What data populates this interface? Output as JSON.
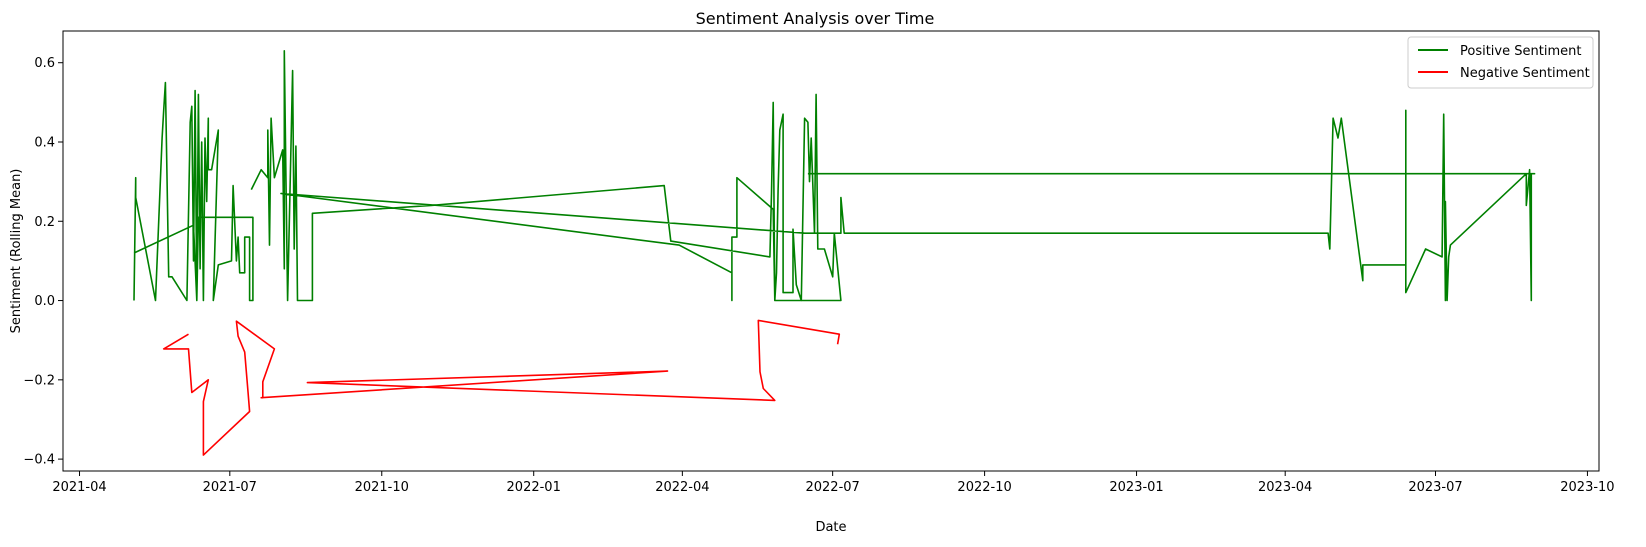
{
  "chart_data": {
    "type": "line",
    "title": "Sentiment Analysis over Time",
    "xlabel": "Date",
    "ylabel": "Sentiment (Rolling Mean)",
    "xlim": [
      "2021-03-22",
      "2023-10-08"
    ],
    "ylim": [
      -0.43,
      0.68
    ],
    "x_ticks": [
      "2021-04",
      "2021-07",
      "2021-10",
      "2022-01",
      "2022-04",
      "2022-07",
      "2022-10",
      "2023-01",
      "2023-04",
      "2023-07",
      "2023-10"
    ],
    "y_ticks": [
      -0.4,
      -0.2,
      0.0,
      0.2,
      0.4,
      0.6
    ],
    "y_tick_labels": [
      "−0.4",
      "−0.2",
      "0.0",
      "0.2",
      "0.4",
      "0.6"
    ],
    "grid": false,
    "legend_position": "top-right",
    "series": [
      {
        "name": "Positive Sentiment",
        "color": "#008000",
        "points": [
          [
            "2021-05-04",
            0.12
          ],
          [
            "2021-06-09",
            0.19
          ],
          [
            "2021-06-11",
            0.0
          ],
          [
            "2021-06-12",
            0.21
          ],
          [
            "2021-07-15",
            0.21
          ],
          [
            "2021-07-15",
            0.0
          ],
          [
            "2021-07-13",
            0.0
          ],
          [
            "2021-07-13",
            0.16
          ],
          [
            "2021-07-10",
            0.16
          ],
          [
            "2021-07-10",
            0.07
          ],
          [
            "2021-07-07",
            0.07
          ],
          [
            "2021-07-06",
            0.16
          ],
          [
            "2021-07-05",
            0.1
          ],
          [
            "2021-07-03",
            0.29
          ],
          [
            "2021-07-02",
            0.1
          ],
          [
            "2021-06-24",
            0.09
          ],
          [
            "2021-06-21",
            0.0
          ],
          [
            "2021-06-24",
            0.43
          ],
          [
            "2021-06-20",
            0.33
          ],
          [
            "2021-06-18",
            0.33
          ],
          [
            "2021-06-18",
            0.46
          ],
          [
            "2021-06-17",
            0.25
          ],
          [
            "2021-06-16",
            0.41
          ],
          [
            "2021-06-15",
            0.0
          ],
          [
            "2021-06-14",
            0.4
          ],
          [
            "2021-06-13",
            0.08
          ],
          [
            "2021-06-12",
            0.52
          ],
          [
            "2021-06-11",
            0.0
          ],
          [
            "2021-06-10",
            0.53
          ],
          [
            "2021-06-09",
            0.1
          ],
          [
            "2021-06-08",
            0.49
          ],
          [
            "2021-06-07",
            0.45
          ],
          [
            "2021-06-05",
            0.0
          ],
          [
            "2021-05-27",
            0.06
          ],
          [
            "2021-05-25",
            0.06
          ],
          [
            "2021-05-23",
            0.55
          ],
          [
            "2021-05-22",
            0.48
          ],
          [
            "2021-05-21",
            0.41
          ],
          [
            "2021-05-17",
            0.0
          ],
          [
            "2021-05-05",
            0.26
          ],
          [
            "2021-05-05",
            0.31
          ],
          [
            "2021-05-04",
            0.0
          ]
        ],
        "points_2": [
          [
            "2021-07-14",
            0.28
          ],
          [
            "2021-07-20",
            0.33
          ],
          [
            "2021-07-24",
            0.31
          ],
          [
            "2021-07-24",
            0.43
          ],
          [
            "2021-07-25",
            0.14
          ],
          [
            "2021-07-26",
            0.46
          ],
          [
            "2021-07-28",
            0.31
          ],
          [
            "2021-08-02",
            0.38
          ],
          [
            "2021-08-03",
            0.08
          ],
          [
            "2021-08-03",
            0.63
          ],
          [
            "2021-08-04",
            0.3
          ],
          [
            "2021-08-05",
            0.0
          ],
          [
            "2021-08-07",
            0.38
          ],
          [
            "2021-08-08",
            0.58
          ],
          [
            "2021-08-09",
            0.13
          ],
          [
            "2021-08-10",
            0.39
          ],
          [
            "2021-08-11",
            0.0
          ],
          [
            "2021-08-20",
            0.0
          ],
          [
            "2021-08-20",
            0.22
          ],
          [
            "2021-10-31",
            0.24
          ],
          [
            "2022-03-21",
            0.29
          ],
          [
            "2022-03-25",
            0.15
          ],
          [
            "2022-05-24",
            0.11
          ],
          [
            "2022-05-25",
            0.27
          ],
          [
            "2022-05-26",
            0.5
          ],
          [
            "2022-05-27",
            0.0
          ],
          [
            "2022-05-28",
            0.07
          ],
          [
            "2022-05-29",
            0.28
          ],
          [
            "2022-05-30",
            0.43
          ],
          [
            "2022-06-01",
            0.47
          ],
          [
            "2022-06-01",
            0.02
          ],
          [
            "2022-06-07",
            0.02
          ],
          [
            "2022-06-07",
            0.18
          ],
          [
            "2022-06-09",
            0.04
          ],
          [
            "2022-06-12",
            0.0
          ],
          [
            "2022-06-14",
            0.46
          ],
          [
            "2022-06-16",
            0.45
          ],
          [
            "2022-06-17",
            0.3
          ],
          [
            "2022-06-18",
            0.41
          ],
          [
            "2022-06-20",
            0.17
          ],
          [
            "2022-06-21",
            0.52
          ],
          [
            "2022-06-22",
            0.13
          ],
          [
            "2022-06-26",
            0.13
          ],
          [
            "2022-07-01",
            0.06
          ],
          [
            "2022-07-02",
            0.17
          ],
          [
            "2022-07-06",
            0.0
          ],
          [
            "2022-05-29",
            0.0
          ],
          [
            "2022-05-27",
            0.0
          ],
          [
            "2022-05-26",
            0.23
          ],
          [
            "2022-05-04",
            0.31
          ],
          [
            "2022-05-04",
            0.16
          ],
          [
            "2022-05-01",
            0.16
          ],
          [
            "2022-05-01",
            0.0
          ],
          [
            "2022-05-01",
            0.07
          ],
          [
            "2022-03-30",
            0.14
          ],
          [
            "2021-08-01",
            0.27
          ],
          [
            "2022-06-14",
            0.17
          ],
          [
            "2022-07-06",
            0.17
          ],
          [
            "2022-07-06",
            0.26
          ],
          [
            "2022-07-08",
            0.17
          ],
          [
            "2023-04-27",
            0.17
          ],
          [
            "2023-04-28",
            0.13
          ],
          [
            "2023-04-30",
            0.46
          ],
          [
            "2023-05-03",
            0.41
          ],
          [
            "2023-05-05",
            0.46
          ],
          [
            "2023-05-18",
            0.05
          ],
          [
            "2023-05-18",
            0.09
          ],
          [
            "2023-06-13",
            0.09
          ],
          [
            "2023-06-13",
            0.48
          ],
          [
            "2023-06-13",
            0.02
          ],
          [
            "2023-06-25",
            0.13
          ],
          [
            "2023-07-05",
            0.11
          ],
          [
            "2023-07-06",
            0.47
          ],
          [
            "2023-07-07",
            0.0
          ],
          [
            "2023-07-07",
            0.25
          ],
          [
            "2023-07-08",
            0.0
          ],
          [
            "2023-07-09",
            0.11
          ],
          [
            "2023-07-10",
            0.14
          ],
          [
            "2023-08-25",
            0.32
          ],
          [
            "2023-08-25",
            0.24
          ],
          [
            "2023-08-27",
            0.33
          ],
          [
            "2023-08-28",
            0.0
          ],
          [
            "2023-08-28",
            0.32
          ],
          [
            "2023-08-30",
            0.32
          ],
          [
            "2022-06-16",
            0.32
          ],
          [
            "2022-06-16",
            0.32
          ]
        ]
      },
      {
        "name": "Negative Sentiment",
        "color": "#ff0000",
        "points": [
          [
            "2021-06-06",
            -0.085
          ],
          [
            "2021-05-22",
            -0.122
          ],
          [
            "2021-06-06",
            -0.122
          ],
          [
            "2021-06-08",
            -0.232
          ],
          [
            "2021-06-18",
            -0.2
          ],
          [
            "2021-06-15",
            -0.255
          ],
          [
            "2021-06-15",
            -0.39
          ],
          [
            "2021-07-13",
            -0.28
          ],
          [
            "2021-07-12",
            -0.23
          ],
          [
            "2021-07-10",
            -0.13
          ],
          [
            "2021-07-06",
            -0.09
          ],
          [
            "2021-07-05",
            -0.052
          ],
          [
            "2021-07-28",
            -0.122
          ],
          [
            "2021-07-21",
            -0.205
          ],
          [
            "2021-07-21",
            -0.245
          ],
          [
            "2021-07-20",
            -0.245
          ],
          [
            "2022-03-23",
            -0.178
          ],
          [
            "2021-08-17",
            -0.207
          ],
          [
            "2022-05-27",
            -0.252
          ],
          [
            "2022-05-20",
            -0.222
          ],
          [
            "2022-05-18",
            -0.18
          ],
          [
            "2022-05-17",
            -0.05
          ],
          [
            "2022-07-05",
            -0.085
          ],
          [
            "2022-07-04",
            -0.11
          ]
        ]
      }
    ]
  }
}
